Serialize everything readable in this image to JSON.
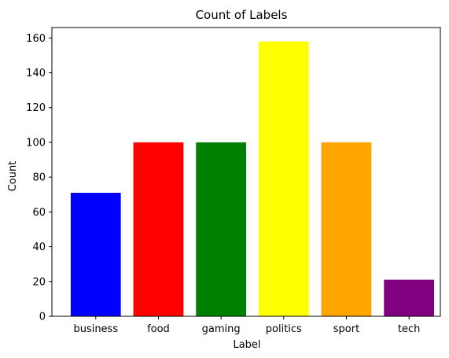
{
  "chart_data": {
    "type": "bar",
    "title": "Count of Labels",
    "xlabel": "Label",
    "ylabel": "Count",
    "categories": [
      "business",
      "food",
      "gaming",
      "politics",
      "sport",
      "tech"
    ],
    "values": [
      71,
      100,
      100,
      158,
      100,
      21
    ],
    "colors": [
      "#0000ff",
      "#ff0000",
      "#008000",
      "#ffff00",
      "#ffa500",
      "#800080"
    ],
    "ylim": [
      0,
      166
    ],
    "yticks": [
      0,
      20,
      40,
      60,
      80,
      100,
      120,
      140,
      160
    ],
    "grid": false,
    "legend": "none"
  }
}
